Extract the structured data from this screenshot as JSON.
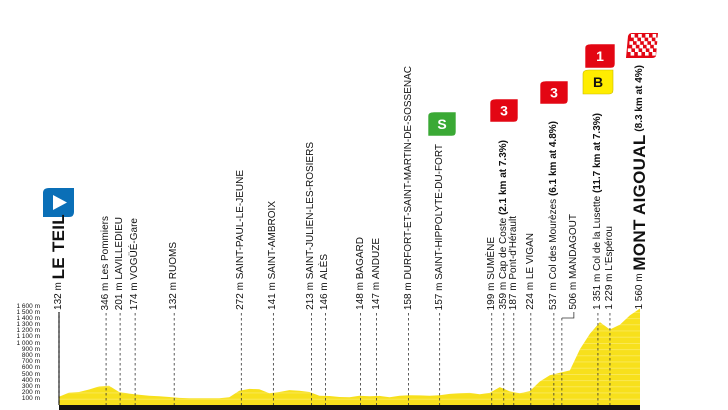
{
  "chart_data": {
    "type": "area",
    "title": "",
    "xlabel": "",
    "ylabel": "",
    "ylim": [
      0,
      1600
    ],
    "y_unit": "m",
    "y_ticks": [
      "100 m",
      "200 m",
      "300 m",
      "400 m",
      "500 m",
      "600 m",
      "700 m",
      "800 m",
      "900 m",
      "1 000 m",
      "1 100 m",
      "1 200 m",
      "1 300 m",
      "1 400 m",
      "1 500 m",
      "1 600 m"
    ],
    "y_tick_values": [
      100,
      200,
      300,
      400,
      500,
      600,
      700,
      800,
      900,
      1000,
      1100,
      1200,
      1300,
      1400,
      1500,
      1600
    ],
    "grid": false,
    "fill_color": "#f7e01c",
    "profile_elevations_m": [
      132,
      200,
      210,
      250,
      300,
      310,
      210,
      185,
      165,
      150,
      140,
      130,
      115,
      110,
      110,
      110,
      110,
      125,
      230,
      260,
      255,
      190,
      210,
      240,
      230,
      210,
      150,
      146,
      130,
      125,
      148,
      140,
      147,
      125,
      150,
      158,
      155,
      150,
      157,
      180,
      190,
      195,
      175,
      195,
      290,
      220,
      190,
      224,
      380,
      480,
      520,
      560,
      900,
      1150,
      1340,
      1220,
      1300,
      1450,
      1560
    ],
    "markers": [
      {
        "sample": 0,
        "alt": "132 m",
        "name": "LE TEIL",
        "extra": "",
        "style": "big",
        "icon": "start"
      },
      {
        "sample": 4.7,
        "alt": "346 m",
        "name": "Les Pommiers",
        "extra": ""
      },
      {
        "sample": 6.1,
        "alt": "201 m",
        "name": "LAVILLEDIEU",
        "extra": ""
      },
      {
        "sample": 7.6,
        "alt": "174 m",
        "name": "VOGÜÉ-Gare",
        "extra": ""
      },
      {
        "sample": 11.5,
        "alt": "132 m",
        "name": "RUOMS",
        "extra": ""
      },
      {
        "sample": 18.2,
        "alt": "272 m",
        "name": "SAINT-PAUL-LE-JEUNE",
        "extra": ""
      },
      {
        "sample": 21.4,
        "alt": "141 m",
        "name": "SAINT-AMBROIX",
        "extra": ""
      },
      {
        "sample": 25.2,
        "alt": "213 m",
        "name": "SAINT-JULIEN-LES-ROSIERS",
        "extra": ""
      },
      {
        "sample": 26.6,
        "alt": "146 m",
        "name": "ALÈS",
        "extra": ""
      },
      {
        "sample": 30.1,
        "alt": "148 m",
        "name": "BAGARD",
        "extra": ""
      },
      {
        "sample": 31.7,
        "alt": "147 m",
        "name": "ANDUZE",
        "extra": ""
      },
      {
        "sample": 34.9,
        "alt": "158 m",
        "name": "DURFORT-ET-SAINT-MARTIN-DE-SOSSENAC",
        "extra": ""
      },
      {
        "sample": 38,
        "alt": "157 m",
        "name": "SAINT-HIPPOLYTE-DU-FORT",
        "extra": "",
        "icon": "sprint"
      },
      {
        "sample": 43.2,
        "alt": "199 m",
        "name": "SUMÈNE",
        "extra": ""
      },
      {
        "sample": 44.4,
        "alt": "359 m",
        "name": "Cap de Coste",
        "extra": "(2.1 km at 7.3%)",
        "icon": "cat3"
      },
      {
        "sample": 45.4,
        "alt": "187 m",
        "name": "Pont-d'Hérault",
        "extra": ""
      },
      {
        "sample": 47.1,
        "alt": "224 m",
        "name": "LE VIGAN",
        "extra": ""
      },
      {
        "sample": 49.4,
        "alt": "537 m",
        "name": "Col des Mourèzes",
        "extra": "(6.1 km at 4.8%)",
        "icon": "cat3"
      },
      {
        "sample": 50.2,
        "alt": "506 m",
        "name": "MANDAGOUT",
        "extra": "",
        "elbow": true
      },
      {
        "sample": 53.8,
        "alt": "1 351 m",
        "name": "Col de la Lusette",
        "extra": "(11.7 km at 7.3%)",
        "icon": "cat1-bonus"
      },
      {
        "sample": 55,
        "alt": "1 229 m",
        "name": "L'Espérou",
        "extra": ""
      },
      {
        "sample": 58,
        "alt": "1 560 m",
        "name": "MONT AIGOUAL",
        "extra": "(8.3 km at 4%)",
        "style": "big",
        "icon": "finish"
      }
    ]
  },
  "badges": {
    "sprint": {
      "text": "S",
      "color": "#3aa935"
    },
    "cat3": {
      "text": "3",
      "color": "#e30613"
    },
    "cat1": {
      "text": "1",
      "color": "#e30613"
    },
    "bonus": {
      "text": "B",
      "color": "#ffed00"
    },
    "start_color": "#0a6fb7",
    "finish_color": "#e30613"
  }
}
